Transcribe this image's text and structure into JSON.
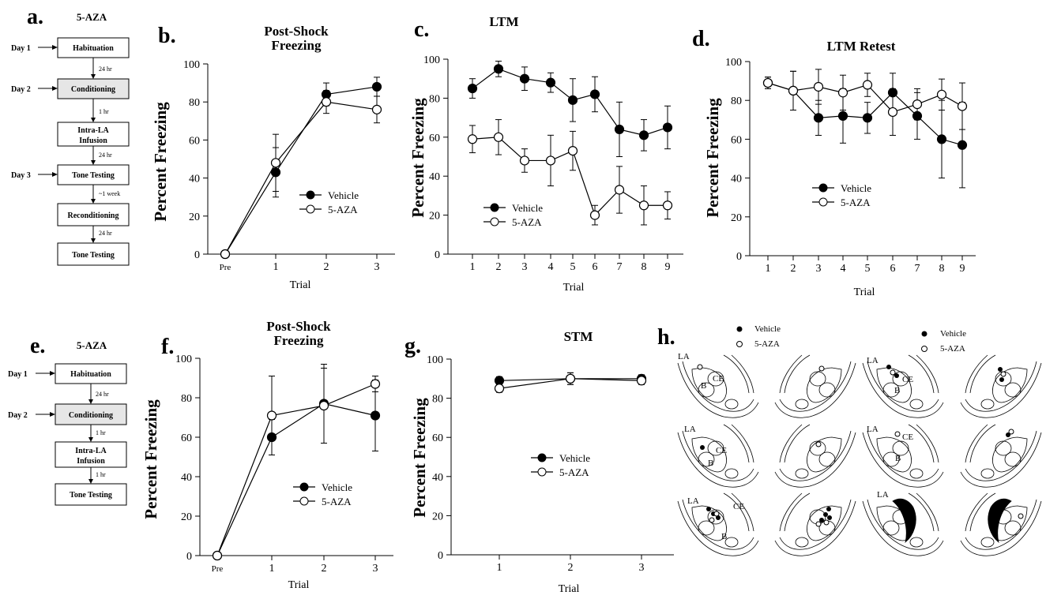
{
  "figure": {
    "panels": {
      "a": "a.",
      "b": "b.",
      "c": "c.",
      "d": "d.",
      "e": "e.",
      "f": "f.",
      "g": "g.",
      "h": "h."
    }
  },
  "flow_a": {
    "title": "5-AZA",
    "days": [
      "Day 1",
      "Day 2",
      "Day 3"
    ],
    "steps": [
      "Habituation",
      "Conditioning",
      "Intra-LA",
      "Infusion",
      "Tone Testing",
      "Reconditioning",
      "Tone Testing"
    ],
    "intervals": [
      "24 hr",
      "1 hr",
      "24 hr",
      "~1 week",
      "24 hr"
    ]
  },
  "flow_e": {
    "title": "5-AZA",
    "days": [
      "Day 1",
      "Day 2"
    ],
    "steps": [
      "Habituation",
      "Conditioning",
      "Intra-LA",
      "Infusion",
      "Tone Testing"
    ],
    "intervals": [
      "24 hr",
      "1 hr",
      "1 hr"
    ]
  },
  "histology": {
    "legend": [
      "Vehicle",
      "5-AZA"
    ],
    "regions": [
      "LA",
      "CE",
      "B"
    ]
  },
  "chart_data": [
    {
      "id": "b",
      "type": "line",
      "title": [
        "Post-Shock",
        "Freezing"
      ],
      "xlabel": "Trial",
      "ylabel": "Percent Freezing",
      "categories": [
        "Pre",
        "1",
        "2",
        "3"
      ],
      "ylim": [
        0,
        100
      ],
      "yticks": [
        0,
        20,
        40,
        60,
        80,
        100
      ],
      "legend_position": "center-right",
      "series": [
        {
          "name": "Vehicle",
          "marker": "filled",
          "values": [
            0,
            43,
            84,
            88
          ],
          "err": [
            0,
            13,
            6,
            5
          ]
        },
        {
          "name": "5-AZA",
          "marker": "open",
          "values": [
            0,
            48,
            80,
            76
          ],
          "err": [
            0,
            15,
            6,
            7
          ]
        }
      ]
    },
    {
      "id": "c",
      "type": "line",
      "title": [
        "LTM"
      ],
      "xlabel": "Trial",
      "ylabel": "Percent Freezing",
      "categories": [
        "1",
        "2",
        "3",
        "4",
        "5",
        "6",
        "7",
        "8",
        "9"
      ],
      "ylim": [
        0,
        100
      ],
      "yticks": [
        0,
        20,
        40,
        60,
        80,
        100
      ],
      "legend_position": "bottom-left",
      "series": [
        {
          "name": "Vehicle",
          "marker": "filled",
          "values": [
            85,
            95,
            90,
            88,
            79,
            82,
            64,
            61,
            65
          ],
          "err": [
            5,
            4,
            6,
            5,
            11,
            9,
            14,
            8,
            11
          ]
        },
        {
          "name": "5-AZA",
          "marker": "open",
          "values": [
            59,
            60,
            48,
            48,
            53,
            20,
            33,
            25,
            25
          ],
          "err": [
            7,
            9,
            6,
            13,
            10,
            5,
            12,
            10,
            7
          ]
        }
      ]
    },
    {
      "id": "d",
      "type": "line",
      "title": [
        "LTM Retest"
      ],
      "xlabel": "Trial",
      "ylabel": "Percent Freezing",
      "categories": [
        "1",
        "2",
        "3",
        "4",
        "5",
        "6",
        "7",
        "8",
        "9"
      ],
      "ylim": [
        0,
        100
      ],
      "yticks": [
        0,
        20,
        40,
        60,
        80,
        100
      ],
      "legend_position": "bottom-left",
      "series": [
        {
          "name": "Vehicle",
          "marker": "filled",
          "values": [
            89,
            85,
            71,
            72,
            71,
            84,
            72,
            60,
            57
          ],
          "err": [
            3,
            10,
            9,
            14,
            8,
            10,
            12,
            20,
            22
          ]
        },
        {
          "name": "5-AZA",
          "marker": "open",
          "values": [
            89,
            85,
            87,
            84,
            88,
            74,
            78,
            83,
            77
          ],
          "err": [
            3,
            10,
            9,
            9,
            6,
            12,
            8,
            8,
            12
          ]
        }
      ]
    },
    {
      "id": "f",
      "type": "line",
      "title": [
        "Post-Shock",
        "Freezing"
      ],
      "xlabel": "Trial",
      "ylabel": "Percent Freezing",
      "categories": [
        "Pre",
        "1",
        "2",
        "3"
      ],
      "ylim": [
        0,
        100
      ],
      "yticks": [
        0,
        20,
        40,
        60,
        80,
        100
      ],
      "legend_position": "bottom-right",
      "series": [
        {
          "name": "Vehicle",
          "marker": "filled",
          "values": [
            0,
            60,
            77,
            71
          ],
          "err": [
            0,
            9,
            20,
            18
          ]
        },
        {
          "name": "5-AZA",
          "marker": "open",
          "values": [
            0,
            71,
            76,
            87
          ],
          "err": [
            0,
            20,
            19,
            4
          ]
        }
      ]
    },
    {
      "id": "g",
      "type": "line",
      "title": [
        "STM"
      ],
      "xlabel": "Trial",
      "ylabel": "Percent Freezing",
      "categories": [
        "1",
        "2",
        "3"
      ],
      "ylim": [
        0,
        100
      ],
      "yticks": [
        0,
        20,
        40,
        60,
        80,
        100
      ],
      "legend_position": "center-left",
      "series": [
        {
          "name": "Vehicle",
          "marker": "filled",
          "values": [
            89,
            90,
            90
          ],
          "err": [
            2,
            3,
            2
          ]
        },
        {
          "name": "5-AZA",
          "marker": "open",
          "values": [
            85,
            90,
            89
          ],
          "err": [
            2,
            3,
            2
          ]
        }
      ]
    }
  ]
}
